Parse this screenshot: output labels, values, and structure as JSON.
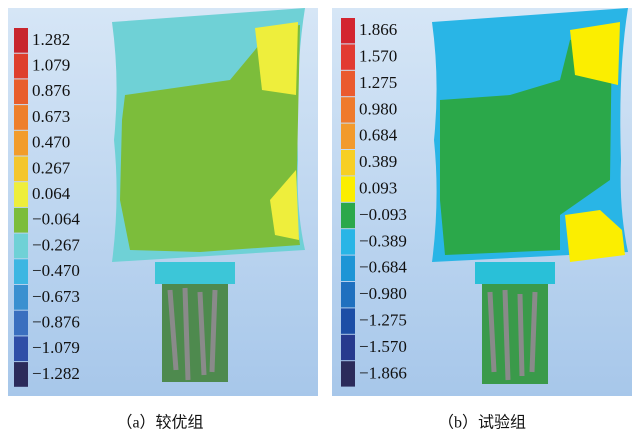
{
  "panels": [
    {
      "caption": "（a）较优组",
      "legend": [
        {
          "label": "1.282",
          "color": "#c8252d"
        },
        {
          "label": "1.079",
          "color": "#de3f2d"
        },
        {
          "label": "0.876",
          "color": "#e85e2c"
        },
        {
          "label": "0.673",
          "color": "#ee7f2b"
        },
        {
          "label": "0.470",
          "color": "#f29c2b"
        },
        {
          "label": "0.267",
          "color": "#f4c62d"
        },
        {
          "label": "0.064",
          "color": "#eeee3c"
        },
        {
          "label": "−0.064",
          "color": "#7cbd3b"
        },
        {
          "label": "−0.267",
          "color": "#6fd1d6"
        },
        {
          "label": "−0.470",
          "color": "#3cb6e2"
        },
        {
          "label": "−0.673",
          "color": "#3a90d0"
        },
        {
          "label": "−0.876",
          "color": "#3a6fbf"
        },
        {
          "label": "−1.079",
          "color": "#2f4ea7"
        },
        {
          "label": "−1.282",
          "color": "#2b2b5b"
        }
      ]
    },
    {
      "caption": "（b）试验组",
      "legend": [
        {
          "label": "1.866",
          "color": "#d32530"
        },
        {
          "label": "1.570",
          "color": "#e23a32"
        },
        {
          "label": "1.275",
          "color": "#ea5a2e"
        },
        {
          "label": "0.980",
          "color": "#ef7a2c"
        },
        {
          "label": "0.684",
          "color": "#f29a2c"
        },
        {
          "label": "0.389",
          "color": "#f7cf24"
        },
        {
          "label": "0.093",
          "color": "#fbee00"
        },
        {
          "label": "−0.093",
          "color": "#2ba84a"
        },
        {
          "label": "−0.389",
          "color": "#29b5e6"
        },
        {
          "label": "−0.684",
          "color": "#1d95d6"
        },
        {
          "label": "−0.980",
          "color": "#1f70bf"
        },
        {
          "label": "−1.275",
          "color": "#1c4ea6"
        },
        {
          "label": "−1.570",
          "color": "#273a8e"
        },
        {
          "label": "−1.866",
          "color": "#2b2b5b"
        }
      ]
    }
  ]
}
